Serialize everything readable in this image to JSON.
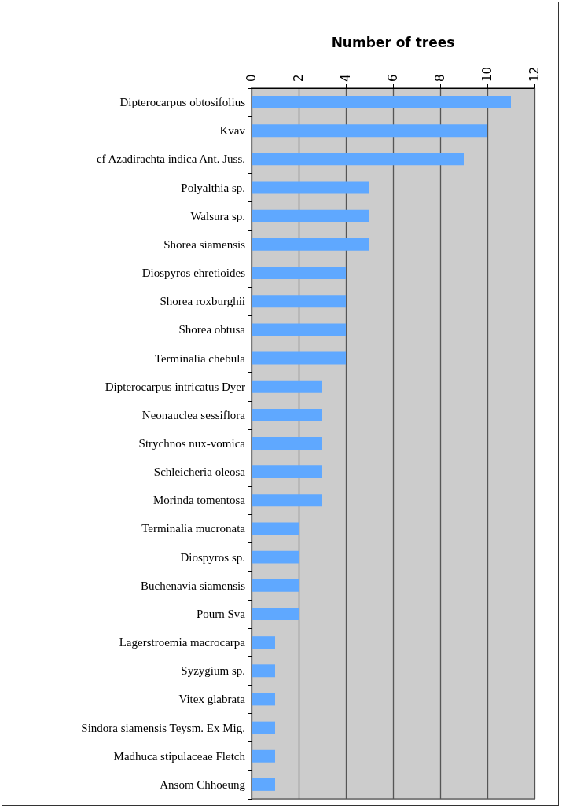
{
  "chart_data": {
    "type": "bar",
    "orientation": "horizontal",
    "xlabel": "Number of trees",
    "categories": [
      "Dipterocarpus obtosifolius",
      "Kvav",
      "cf Azadirachta indica Ant. Juss.",
      "Polyalthia sp.",
      "Walsura sp.",
      "Shorea siamensis",
      "Diospyros ehretioides",
      "Shorea roxburghii",
      "Shorea obtusa",
      "Terminalia chebula",
      "Dipterocarpus intricatus Dyer",
      "Neonauclea sessiflora",
      "Strychnos nux-vomica",
      "Schleicheria oleosa",
      "Morinda tomentosa",
      "Terminalia mucronata",
      "Diospyros sp.",
      "Buchenavia siamensis",
      "Pourn Sva",
      "Lagerstroemia macrocarpa",
      "Syzygium sp.",
      "Vitex glabrata",
      "Sindora siamensis Teysm. Ex Mig.",
      "Madhuca stipulaceae Fletch",
      "Ansom Chhoeung"
    ],
    "values": [
      11,
      10,
      9,
      5,
      5,
      5,
      4,
      4,
      4,
      4,
      3,
      3,
      3,
      3,
      3,
      2,
      2,
      2,
      2,
      1,
      1,
      1,
      1,
      1,
      1
    ],
    "color": "#5fa8ff",
    "xlim": [
      0,
      12
    ],
    "xticks": [
      0,
      2,
      4,
      6,
      8,
      10,
      12
    ],
    "grid": "x"
  }
}
